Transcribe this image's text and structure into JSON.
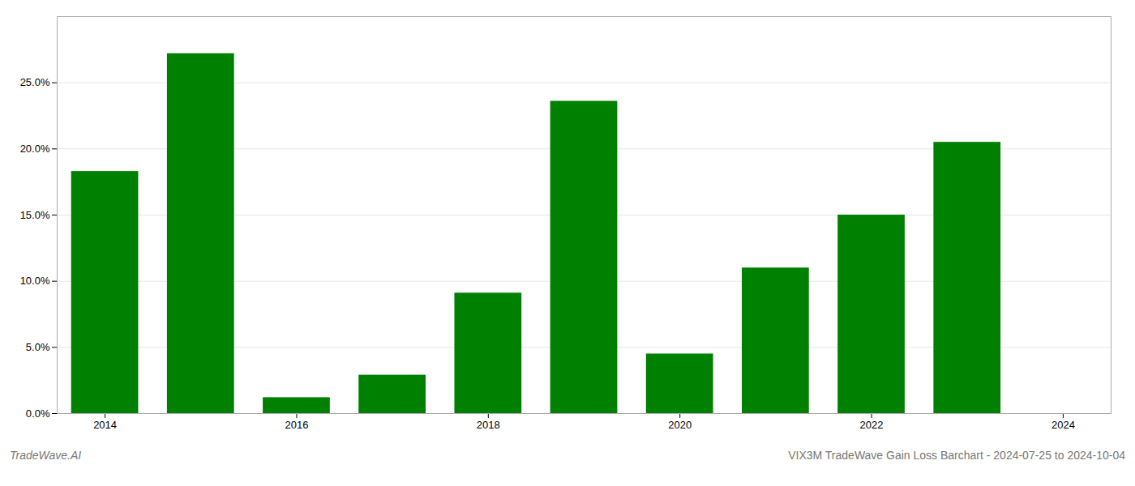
{
  "chart_data": {
    "type": "bar",
    "title": "VIX3M TradeWave Gain Loss Barchart - 2024-07-25 to 2024-10-04",
    "annotations": [
      "TradeWave.AI"
    ],
    "x": [
      2014,
      2015,
      2016,
      2017,
      2018,
      2019,
      2020,
      2021,
      2022,
      2023,
      2024
    ],
    "values": [
      0.183,
      0.272,
      0.012,
      0.029,
      0.091,
      0.236,
      0.045,
      0.11,
      0.15,
      0.205,
      0.0
    ],
    "color": "#008000",
    "xlim": [
      2013.5,
      2024.5
    ],
    "xticks": [
      2014,
      2016,
      2018,
      2020,
      2022,
      2024
    ],
    "ylim": [
      0,
      0.3
    ],
    "yticks": [
      {
        "value": 0.0,
        "label": "0.0%"
      },
      {
        "value": 0.05,
        "label": "5.0%"
      },
      {
        "value": 0.1,
        "label": "10.0%"
      },
      {
        "value": 0.15,
        "label": "15.0%"
      },
      {
        "value": 0.2,
        "label": "20.0%"
      },
      {
        "value": 0.25,
        "label": "25.0%"
      }
    ],
    "grid": true
  }
}
